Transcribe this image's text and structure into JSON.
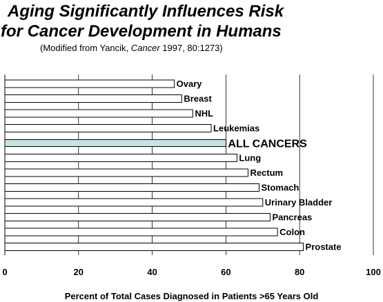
{
  "title": {
    "line1": "Aging Significantly Influences Risk",
    "line2": "for Cancer Development in Humans"
  },
  "subtitle": {
    "prefix": "(Modified from Yancik, ",
    "journal": "Cancer",
    "suffix": " 1997, 80:1273)"
  },
  "chart_data": {
    "type": "bar",
    "orientation": "horizontal",
    "categories": [
      "Ovary",
      "Breast",
      "NHL",
      "Leukemias",
      "ALL CANCERS",
      "Lung",
      "Rectum",
      "Stomach",
      "Urinary Bladder",
      "Pancreas",
      "Colon",
      "Prostate"
    ],
    "values": [
      46,
      48,
      51,
      56,
      60,
      63,
      66,
      69,
      70,
      72,
      74,
      81
    ],
    "highlight": "ALL CANCERS",
    "xlabel": "Percent of Total Cases Diagnosed in Patients >65 Years Old",
    "xlim": [
      0,
      100
    ],
    "xticks": [
      "0",
      "20",
      "40",
      "60",
      "80",
      "100"
    ],
    "grid": "vertical",
    "colors": {
      "bar_fill": "#ffffff",
      "highlight_fill": "#c5e5e5",
      "bar_stroke": "#000000"
    }
  }
}
